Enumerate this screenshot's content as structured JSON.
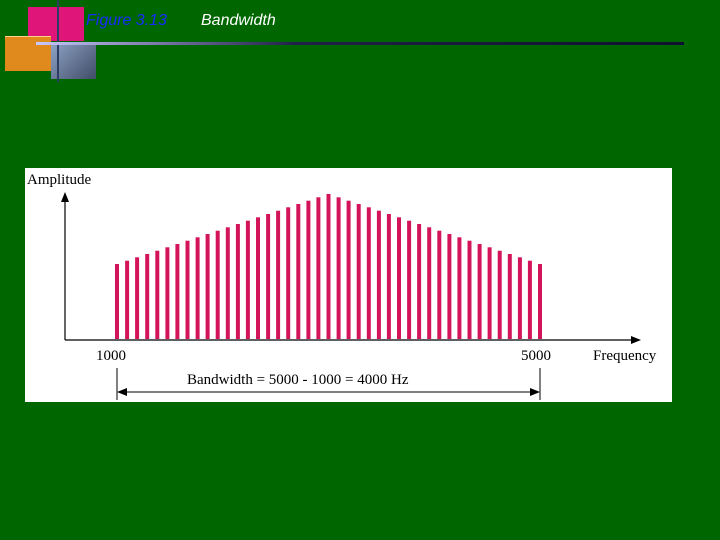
{
  "header": {
    "figure_label": "Figure 3.13",
    "title": "Bandwidth"
  },
  "diagram": {
    "y_axis_label": "Amplitude",
    "x_axis_label": "Frequency",
    "low_freq_label": "1000",
    "high_freq_label": "5000",
    "bandwidth_label": "Bandwidth = 5000 - 1000 = 4000 Hz",
    "bar_color": "#d4145a",
    "bar_count": 43,
    "low_freq": 1000,
    "high_freq": 5000,
    "peak_freq": 3000
  }
}
